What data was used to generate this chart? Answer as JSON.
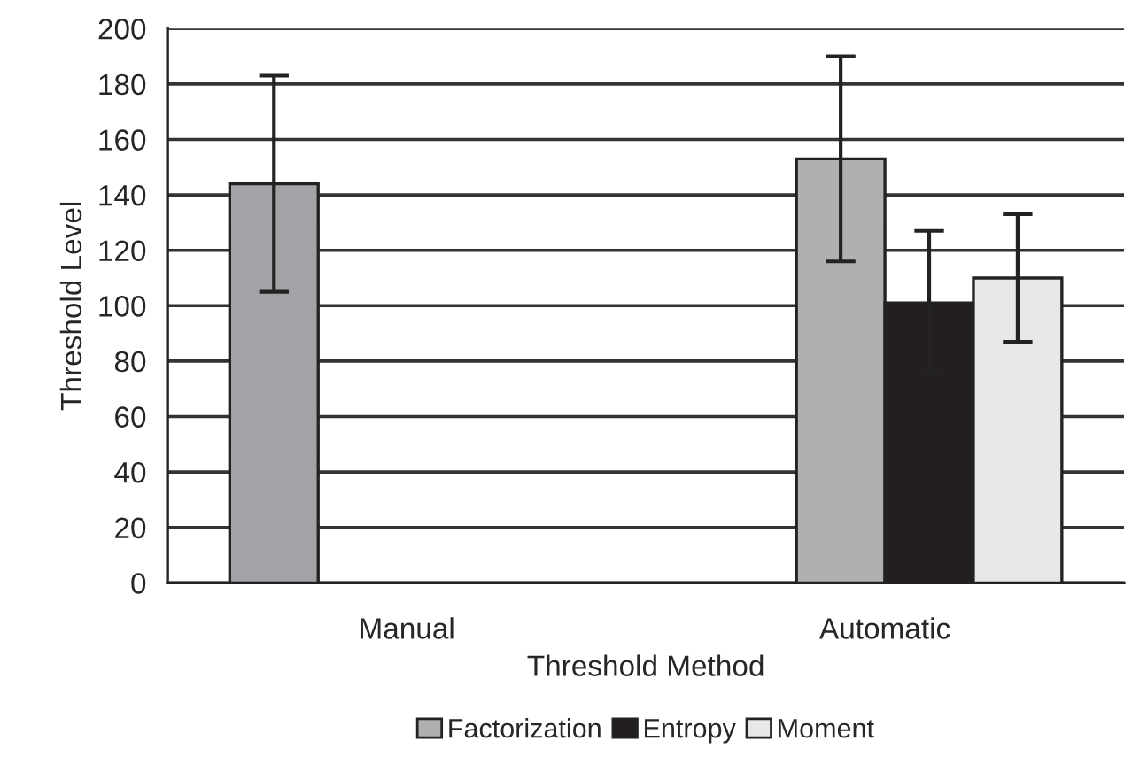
{
  "chart_data": {
    "type": "bar",
    "xlabel": "Threshold Method",
    "ylabel": "Threshold Level",
    "categories": [
      "Manual",
      "Automatic"
    ],
    "series": [
      {
        "color": "#a3a3a7",
        "values": [
          144,
          null
        ],
        "errors": [
          39,
          null
        ]
      },
      {
        "name": "Factorization",
        "color": "#b0b0b0",
        "values": [
          null,
          153
        ],
        "errors": [
          null,
          37
        ]
      },
      {
        "name": "Entropy",
        "color": "#231f20",
        "values": [
          null,
          101
        ],
        "errors": [
          null,
          26
        ]
      },
      {
        "name": "Moment",
        "color": "#e8e8e8",
        "values": [
          null,
          110
        ],
        "errors": [
          null,
          23
        ]
      }
    ],
    "ylim": [
      0,
      200
    ],
    "yticks": [
      0,
      20,
      40,
      60,
      80,
      100,
      120,
      140,
      160,
      180,
      200
    ],
    "grid": "y",
    "legend": "bottom"
  }
}
